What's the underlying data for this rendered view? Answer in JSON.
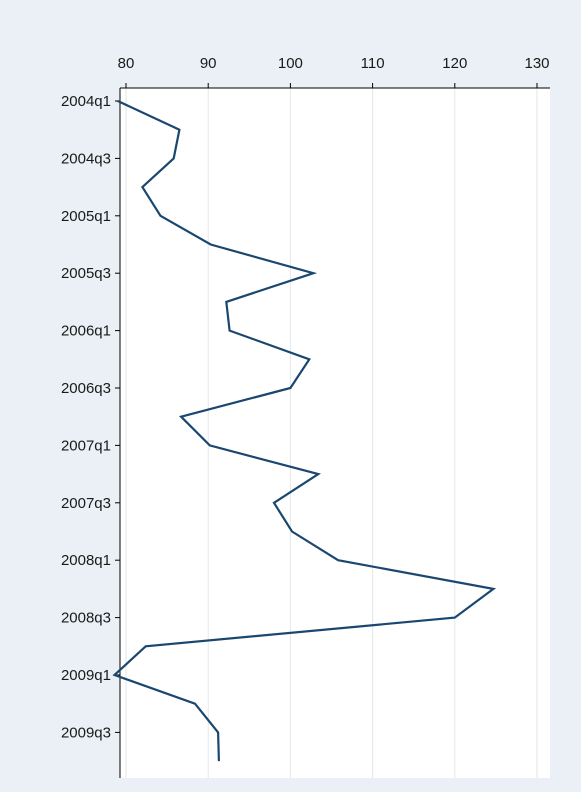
{
  "chart_data": {
    "type": "line",
    "orientation": "horizontal-time",
    "title": "",
    "xlabel": "",
    "ylabel": "",
    "grid": true,
    "legend": "none",
    "value_axis": {
      "position": "top",
      "range": [
        78,
        131
      ],
      "ticks": [
        80,
        90,
        100,
        110,
        120,
        130
      ]
    },
    "time_axis": {
      "position": "left",
      "tick_labels": [
        "2004q1",
        "2004q3",
        "2005q1",
        "2005q3",
        "2006q1",
        "2006q3",
        "2007q1",
        "2007q3",
        "2008q1",
        "2008q3",
        "2009q1",
        "2009q3"
      ]
    },
    "categories": [
      "2004q1",
      "2004q2",
      "2004q3",
      "2004q4",
      "2005q1",
      "2005q2",
      "2005q3",
      "2005q4",
      "2006q1",
      "2006q2",
      "2006q3",
      "2006q4",
      "2007q1",
      "2007q2",
      "2007q3",
      "2007q4",
      "2008q1",
      "2008q2",
      "2008q3",
      "2008q4",
      "2009q1",
      "2009q2",
      "2009q3",
      "2009q4"
    ],
    "series": [
      {
        "values": [
          79.0,
          86.5,
          85.8,
          82.0,
          84.2,
          90.3,
          102.8,
          92.2,
          92.6,
          102.3,
          100.0,
          86.7,
          90.2,
          103.4,
          98.0,
          100.2,
          105.8,
          124.7,
          120.0,
          82.4,
          78.6,
          88.4,
          91.2,
          91.3
        ],
        "color": "#1a476f"
      }
    ]
  },
  "colors": {
    "background": "#eaf0f5",
    "plot_background": "#ffffff",
    "line": "#1a476f",
    "grid": "#e1e7ec"
  }
}
